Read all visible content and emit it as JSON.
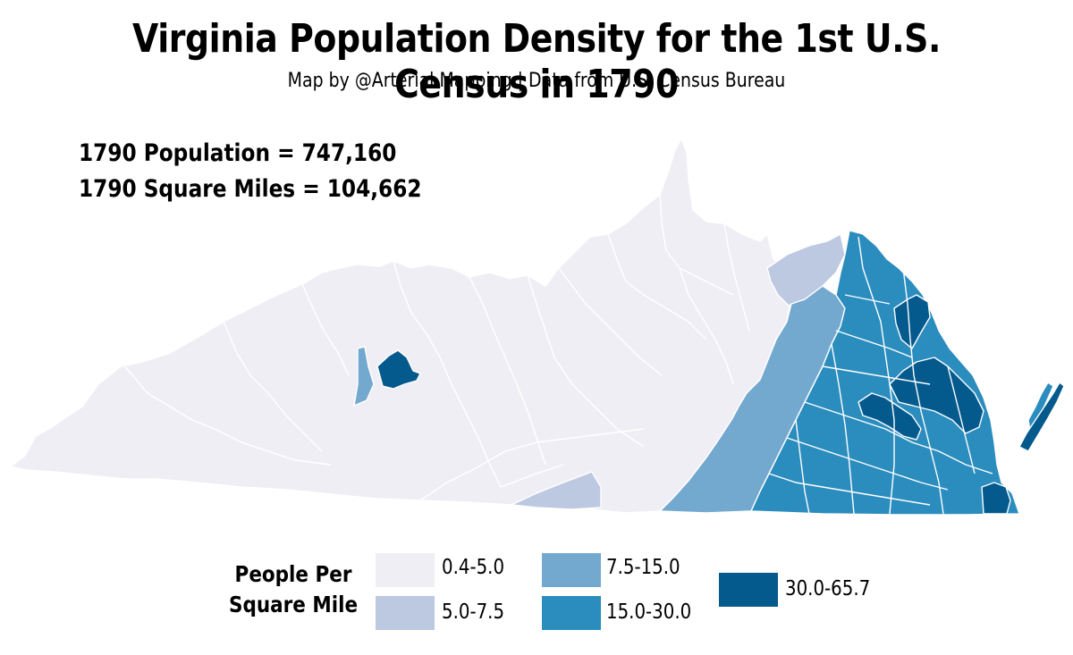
{
  "title": "Virginia Population Density for the 1st U.S. Census in 1790",
  "subtitle": "Map by @Arterial Mapping  |  Data from U.S. Census Bureau",
  "stats": {
    "population": "1790 Population = 747,160",
    "square_miles": "1790 Square Miles = 104,662"
  },
  "legend": {
    "title_line1": "People Per",
    "title_line2": "Square Mile",
    "items": [
      {
        "label": "0.4-5.0",
        "color": "#f0eef5"
      },
      {
        "label": "5.0-7.5",
        "color": "#bdc9e1"
      },
      {
        "label": "7.5-15.0",
        "color": "#74a9cf"
      },
      {
        "label": "15.0-30.0",
        "color": "#2b8cbe"
      },
      {
        "label": "30.0-65.7",
        "color": "#045a8d"
      }
    ]
  }
}
